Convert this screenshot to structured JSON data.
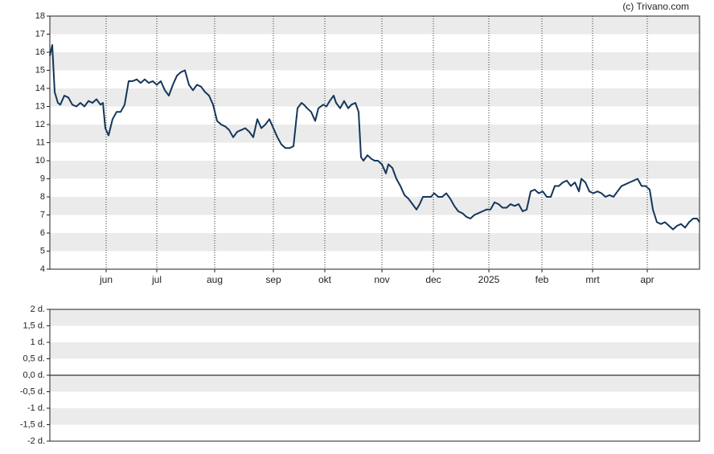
{
  "chart_data": [
    {
      "type": "line",
      "credit": "(c) Trivano.com",
      "color": "#14365a",
      "band_color": "#ebebeb",
      "grid": true,
      "xlim": [
        0,
        808
      ],
      "xticks": [
        {
          "value": 70,
          "label": "jun"
        },
        {
          "value": 133,
          "label": "jul"
        },
        {
          "value": 205,
          "label": "aug"
        },
        {
          "value": 278,
          "label": "sep"
        },
        {
          "value": 342,
          "label": "okt"
        },
        {
          "value": 413,
          "label": "nov"
        },
        {
          "value": 477,
          "label": "dec"
        },
        {
          "value": 546,
          "label": "2025"
        },
        {
          "value": 612,
          "label": "feb"
        },
        {
          "value": 675,
          "label": "mrt"
        },
        {
          "value": 743,
          "label": "apr"
        }
      ],
      "ylim": [
        4,
        18
      ],
      "yticks": [
        4,
        5,
        6,
        7,
        8,
        9,
        10,
        11,
        12,
        13,
        14,
        15,
        16,
        17,
        18
      ],
      "x": [
        0,
        3,
        6,
        10,
        13,
        18,
        23,
        28,
        33,
        38,
        43,
        48,
        53,
        58,
        63,
        66,
        69,
        73,
        78,
        83,
        88,
        93,
        98,
        103,
        108,
        113,
        118,
        123,
        128,
        133,
        138,
        143,
        148,
        153,
        158,
        163,
        168,
        173,
        178,
        183,
        188,
        193,
        198,
        203,
        208,
        213,
        218,
        223,
        228,
        233,
        238,
        243,
        248,
        253,
        258,
        263,
        268,
        273,
        278,
        283,
        288,
        293,
        298,
        303,
        308,
        313,
        316,
        320,
        325,
        330,
        334,
        340,
        344,
        348,
        353,
        356,
        361,
        366,
        371,
        375,
        380,
        384,
        387,
        390,
        395,
        400,
        404,
        408,
        413,
        418,
        421,
        426,
        431,
        436,
        441,
        446,
        451,
        456,
        460,
        464,
        469,
        474,
        478,
        483,
        488,
        493,
        498,
        503,
        508,
        513,
        518,
        523,
        528,
        533,
        538,
        543,
        548,
        553,
        558,
        563,
        568,
        573,
        578,
        583,
        588,
        593,
        598,
        603,
        608,
        613,
        618,
        623,
        628,
        633,
        638,
        643,
        648,
        653,
        658,
        661,
        666,
        671,
        676,
        681,
        686,
        691,
        696,
        701,
        706,
        711,
        716,
        721,
        726,
        731,
        736,
        741,
        746,
        750,
        755,
        760,
        765,
        770,
        775,
        780,
        785,
        790,
        795,
        800,
        805,
        808
      ],
      "values": [
        15.8,
        16.4,
        13.8,
        13.2,
        13.1,
        13.6,
        13.5,
        13.1,
        13.0,
        13.2,
        13.0,
        13.3,
        13.2,
        13.4,
        13.1,
        13.2,
        11.8,
        11.4,
        12.3,
        12.7,
        12.7,
        13.1,
        14.4,
        14.4,
        14.5,
        14.3,
        14.5,
        14.3,
        14.4,
        14.2,
        14.4,
        13.9,
        13.6,
        14.2,
        14.7,
        14.9,
        15.0,
        14.2,
        13.9,
        14.2,
        14.1,
        13.8,
        13.6,
        13.1,
        12.2,
        12.0,
        11.9,
        11.7,
        11.3,
        11.6,
        11.7,
        11.8,
        11.6,
        11.3,
        12.3,
        11.8,
        12.0,
        12.3,
        11.8,
        11.3,
        10.9,
        10.7,
        10.7,
        10.8,
        12.9,
        13.2,
        13.1,
        12.9,
        12.7,
        12.2,
        12.9,
        13.1,
        13.0,
        13.3,
        13.6,
        13.2,
        12.9,
        13.3,
        12.9,
        13.1,
        13.2,
        12.7,
        10.2,
        10.0,
        10.3,
        10.1,
        10.0,
        10.0,
        9.8,
        9.3,
        9.8,
        9.6,
        9.0,
        8.6,
        8.1,
        7.9,
        7.6,
        7.3,
        7.6,
        8.0,
        8.0,
        8.0,
        8.2,
        8.0,
        8.0,
        8.2,
        7.9,
        7.5,
        7.2,
        7.1,
        6.9,
        6.8,
        7.0,
        7.1,
        7.2,
        7.3,
        7.3,
        7.7,
        7.6,
        7.4,
        7.4,
        7.6,
        7.5,
        7.6,
        7.2,
        7.3,
        8.3,
        8.4,
        8.2,
        8.3,
        8.0,
        8.0,
        8.6,
        8.6,
        8.8,
        8.9,
        8.6,
        8.8,
        8.3,
        9.0,
        8.8,
        8.3,
        8.2,
        8.3,
        8.2,
        8.0,
        8.1,
        8.0,
        8.3,
        8.6,
        8.7,
        8.8,
        8.9,
        9.0,
        8.6,
        8.6,
        8.4,
        7.3,
        6.6,
        6.5,
        6.6,
        6.4,
        6.2,
        6.4,
        6.5,
        6.3,
        6.6,
        6.8,
        6.8,
        6.6
      ]
    },
    {
      "type": "bar",
      "band_color": "#ebebeb",
      "ylim": [
        -2,
        2
      ],
      "yticks": [
        {
          "value": -2,
          "label": "-2 d."
        },
        {
          "value": -1.5,
          "label": "-1,5 d."
        },
        {
          "value": -1,
          "label": "-1 d."
        },
        {
          "value": -0.5,
          "label": "-0,5 d."
        },
        {
          "value": 0,
          "label": "0,0 d."
        },
        {
          "value": 0.5,
          "label": "0,5 d."
        },
        {
          "value": 1,
          "label": "1 d."
        },
        {
          "value": 1.5,
          "label": "1,5 d."
        },
        {
          "value": 2,
          "label": "2 d."
        }
      ]
    }
  ]
}
